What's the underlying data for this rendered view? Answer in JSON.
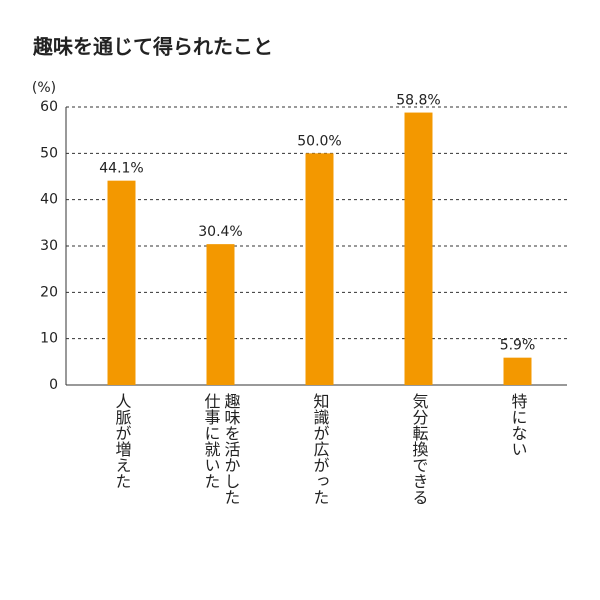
{
  "chart_data": {
    "type": "bar",
    "title": "趣味を通じて得られたこと",
    "y_label": "(%)",
    "categories": [
      "人脈が増えた",
      "趣味を活かした仕事に就いた",
      "知識が広がった",
      "気分転換できる",
      "特にない"
    ],
    "values": [
      44.1,
      30.4,
      50.0,
      58.8,
      5.9
    ],
    "value_labels": [
      "44.1%",
      "30.4%",
      "50.0%",
      "58.8%",
      "5.9%"
    ],
    "color": "#f39800",
    "ylim": [
      0,
      60
    ],
    "yticks": [
      0,
      10,
      20,
      30,
      40,
      50,
      60
    ],
    "grid": true
  }
}
